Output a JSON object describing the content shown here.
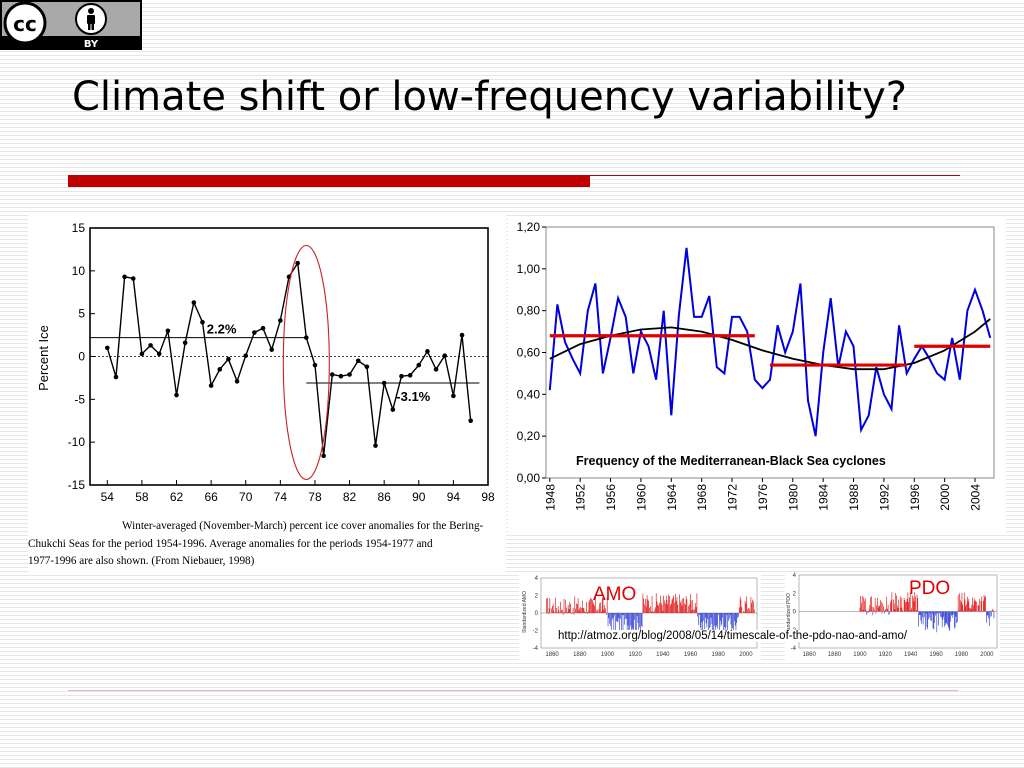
{
  "slide": {
    "title": "Climate shift or low-frequency variability?",
    "badge_label": "BY",
    "caption_line1": "Winter-averaged (November-March) percent ice cover anomalies for the Bering-",
    "caption_line2": "Chukchi Seas for the period 1954-1996.  Average anomalies for the periods 1954-1977 and",
    "caption_line3": "1977-1996 are also shown.  (From Niebauer, 1998)",
    "source_url": "http://atmoz.org/blog/2008/05/14/timescale-of-the-pdo-nao-and-amo/"
  },
  "colors": {
    "accent": "#c00000",
    "cyclone_line": "#0000dd",
    "trend_mean": "#e00000",
    "anomaly_pos": "#e00000",
    "anomaly_neg": "#2030d0"
  },
  "chart_data": [
    {
      "id": "ice",
      "type": "line",
      "xlabel": "",
      "ylabel": "Percent Ice",
      "x_ticks": [
        54,
        58,
        62,
        66,
        70,
        74,
        78,
        82,
        86,
        90,
        94,
        98
      ],
      "y_ticks": [
        15,
        10,
        5,
        0,
        -5,
        -10,
        -15
      ],
      "xlim": [
        52,
        98
      ],
      "ylim": [
        -15,
        15
      ],
      "x": [
        54,
        55,
        56,
        57,
        58,
        59,
        60,
        61,
        62,
        63,
        64,
        65,
        66,
        67,
        68,
        69,
        70,
        71,
        72,
        73,
        74,
        75,
        76,
        77,
        78,
        79,
        80,
        81,
        82,
        83,
        84,
        85,
        86,
        87,
        88,
        89,
        90,
        91,
        92,
        93,
        94,
        95,
        96
      ],
      "values": [
        1.0,
        -2.4,
        9.3,
        9.1,
        0.3,
        1.3,
        0.3,
        3.0,
        -4.5,
        1.6,
        6.3,
        4.0,
        -3.4,
        -1.5,
        -0.3,
        -2.9,
        0.1,
        2.8,
        3.3,
        0.8,
        4.2,
        9.3,
        10.9,
        2.2,
        -1.0,
        -11.6,
        -2.1,
        -2.3,
        -2.1,
        -0.5,
        -1.2,
        -10.4,
        -3.1,
        -6.2,
        -2.3,
        -2.2,
        -1.0,
        0.6,
        -1.5,
        0.1,
        -4.6,
        2.5,
        -7.5
      ],
      "periods": [
        {
          "label": "2.2%",
          "x_start": 52,
          "x_end": 77,
          "value": 2.2
        },
        {
          "label": "-3.1%",
          "x_start": 77,
          "x_end": 97,
          "value": -3.1
        }
      ]
    },
    {
      "id": "cyclones",
      "type": "line",
      "xlabel": "",
      "ylabel": "",
      "annotation": "Frequency of the Mediterranean-Black Sea cyclones",
      "x_ticks": [
        1948,
        1952,
        1956,
        1960,
        1964,
        1968,
        1972,
        1976,
        1980,
        1984,
        1988,
        1992,
        1996,
        2000,
        2004
      ],
      "y_ticks": [
        "0,00",
        "0,20",
        "0,40",
        "0,60",
        "0,80",
        "1,00",
        "1,20"
      ],
      "xlim": [
        1947.5,
        2006.5
      ],
      "ylim": [
        0,
        1.2
      ],
      "x_start": 1948,
      "values": [
        0.42,
        0.83,
        0.65,
        0.57,
        0.5,
        0.8,
        0.93,
        0.5,
        0.67,
        0.86,
        0.77,
        0.5,
        0.7,
        0.63,
        0.47,
        0.8,
        0.3,
        0.78,
        1.1,
        0.77,
        0.77,
        0.87,
        0.53,
        0.5,
        0.77,
        0.77,
        0.7,
        0.47,
        0.43,
        0.47,
        0.73,
        0.6,
        0.7,
        0.93,
        0.37,
        0.2,
        0.6,
        0.86,
        0.53,
        0.7,
        0.63,
        0.23,
        0.3,
        0.53,
        0.4,
        0.33,
        0.73,
        0.5,
        0.57,
        0.63,
        0.57,
        0.5,
        0.47,
        0.67,
        0.47,
        0.8,
        0.9,
        0.8,
        0.67
      ],
      "smooth": [
        {
          "x": 1948,
          "y": 0.57
        },
        {
          "x": 1952,
          "y": 0.64
        },
        {
          "x": 1956,
          "y": 0.68
        },
        {
          "x": 1960,
          "y": 0.71
        },
        {
          "x": 1964,
          "y": 0.72
        },
        {
          "x": 1968,
          "y": 0.7
        },
        {
          "x": 1972,
          "y": 0.66
        },
        {
          "x": 1976,
          "y": 0.61
        },
        {
          "x": 1980,
          "y": 0.57
        },
        {
          "x": 1984,
          "y": 0.54
        },
        {
          "x": 1988,
          "y": 0.52
        },
        {
          "x": 1992,
          "y": 0.52
        },
        {
          "x": 1996,
          "y": 0.55
        },
        {
          "x": 2000,
          "y": 0.61
        },
        {
          "x": 2004,
          "y": 0.7
        },
        {
          "x": 2006,
          "y": 0.76
        }
      ],
      "means": [
        {
          "x_start": 1948,
          "x_end": 1975,
          "value": 0.68
        },
        {
          "x_start": 1977,
          "x_end": 1995,
          "value": 0.54
        },
        {
          "x_start": 1996,
          "x_end": 2006,
          "value": 0.63
        }
      ]
    },
    {
      "id": "amo",
      "type": "bar",
      "title": "AMO",
      "ylabel": "Standardized AMO",
      "x_ticks": [
        1860,
        1880,
        1900,
        1920,
        1940,
        1960,
        1980,
        2000
      ],
      "y_ticks": [
        4,
        2,
        0,
        -2,
        -4
      ],
      "xlim": [
        1852,
        2008
      ],
      "ylim": [
        -4,
        4
      ]
    },
    {
      "id": "pdo",
      "type": "bar",
      "title": "PDO",
      "ylabel": "Standardized PDO",
      "x_ticks": [
        1860,
        1880,
        1900,
        1920,
        1940,
        1960,
        1980,
        2000
      ],
      "y_ticks": [
        4,
        2,
        0,
        -2,
        -4
      ],
      "xlim": [
        1852,
        2008
      ],
      "ylim": [
        -4,
        4
      ]
    }
  ]
}
